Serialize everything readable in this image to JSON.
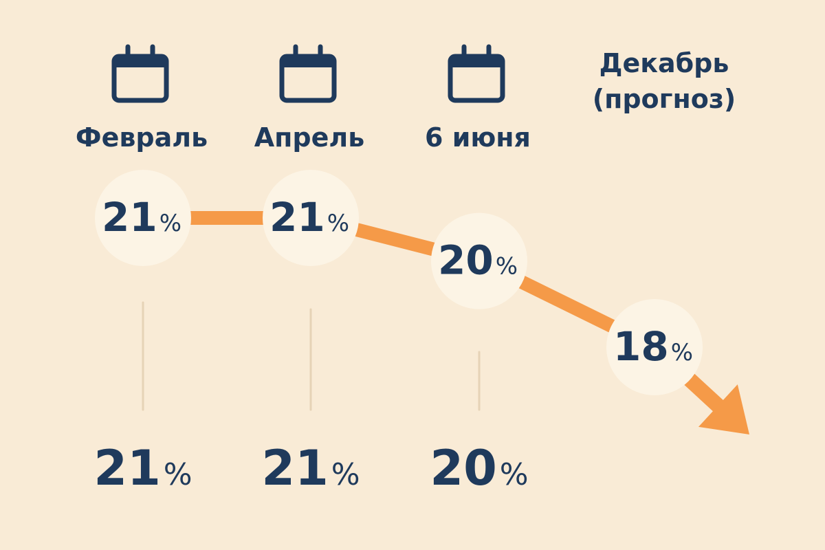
{
  "chart_data": {
    "type": "line",
    "title": "",
    "xlabel": "",
    "ylabel": "",
    "categories": [
      "Февраль",
      "Апрель",
      "6 июня",
      "Декабрь (прогноз)"
    ],
    "category_lines": [
      [
        "Февраль"
      ],
      [
        "Апрель"
      ],
      [
        "6 июня"
      ],
      [
        "Декабрь",
        "(прогноз)"
      ]
    ],
    "calendar_icons": [
      true,
      true,
      true,
      false
    ],
    "series": [
      {
        "values": [
          21,
          21,
          20,
          18
        ],
        "unit": "%"
      }
    ],
    "value_labels": [
      {
        "num": "21",
        "unit": "%"
      },
      {
        "num": "21",
        "unit": "%"
      },
      {
        "num": "20",
        "unit": "%"
      },
      {
        "num": "18",
        "unit": "%"
      }
    ],
    "bottom_labels": [
      {
        "num": "21",
        "unit": "%"
      },
      {
        "num": "21",
        "unit": "%"
      },
      {
        "num": "20",
        "unit": "%"
      }
    ],
    "ylim": [
      17,
      22
    ],
    "trend": "down",
    "grid": false,
    "legend": "none",
    "colors": {
      "background": "#F9EBD6",
      "line": "#F59A48",
      "text": "#1F3A5C",
      "circle": "#FCF4E5",
      "divider": "#E6D3B6"
    },
    "icons": [
      "calendar-icon"
    ]
  }
}
